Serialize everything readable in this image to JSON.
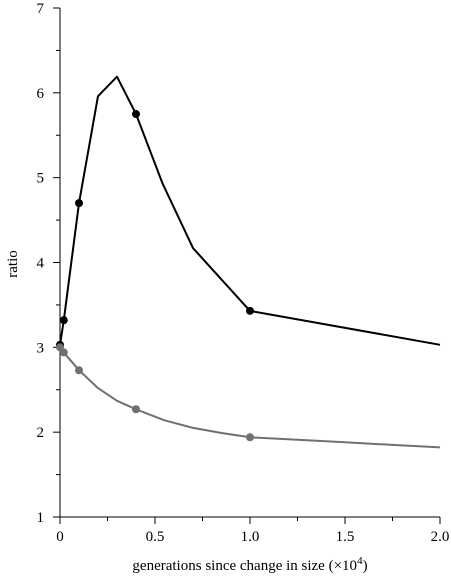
{
  "chart_data": {
    "type": "line",
    "title": "",
    "xlabel": "generations since change in size (×10",
    "xlabel_sup": "4",
    "xlabel_close": ")",
    "ylabel": "ratio",
    "xlim": [
      0,
      2.0
    ],
    "ylim": [
      1,
      7
    ],
    "grid": false,
    "x_ticks": [
      0,
      0.5,
      1.0,
      1.5,
      2.0
    ],
    "x_tick_labels": [
      "0",
      "0.5",
      "1.0",
      "1.5",
      "2.0"
    ],
    "y_ticks": [
      1,
      2,
      3,
      4,
      5,
      6,
      7
    ],
    "y_tick_labels": [
      "1",
      "2",
      "3",
      "4",
      "5",
      "6",
      "7"
    ],
    "series": [
      {
        "color": "#000000",
        "line": {
          "x": [
            0,
            0.02,
            0.1,
            0.2,
            0.3,
            0.4,
            0.54,
            0.7,
            1.0,
            2.0
          ],
          "y": [
            3.03,
            3.32,
            4.7,
            5.96,
            6.19,
            5.75,
            4.93,
            4.17,
            3.43,
            3.03
          ]
        },
        "markers": {
          "x": [
            0,
            0.02,
            0.1,
            0.4,
            1.0
          ],
          "y": [
            3.03,
            3.32,
            4.7,
            5.75,
            3.43
          ]
        }
      },
      {
        "color": "#707070",
        "line": {
          "x": [
            0,
            0.02,
            0.05,
            0.1,
            0.2,
            0.3,
            0.4,
            0.55,
            0.7,
            0.85,
            1.0,
            1.25,
            1.5,
            1.75,
            2.0
          ],
          "y": [
            3.0,
            2.94,
            2.86,
            2.73,
            2.52,
            2.37,
            2.27,
            2.14,
            2.05,
            1.99,
            1.94,
            1.91,
            1.88,
            1.85,
            1.82
          ]
        },
        "markers": {
          "x": [
            0,
            0.02,
            0.1,
            0.4,
            1.0
          ],
          "y": [
            3.0,
            2.94,
            2.73,
            2.27,
            1.94
          ]
        }
      }
    ]
  }
}
